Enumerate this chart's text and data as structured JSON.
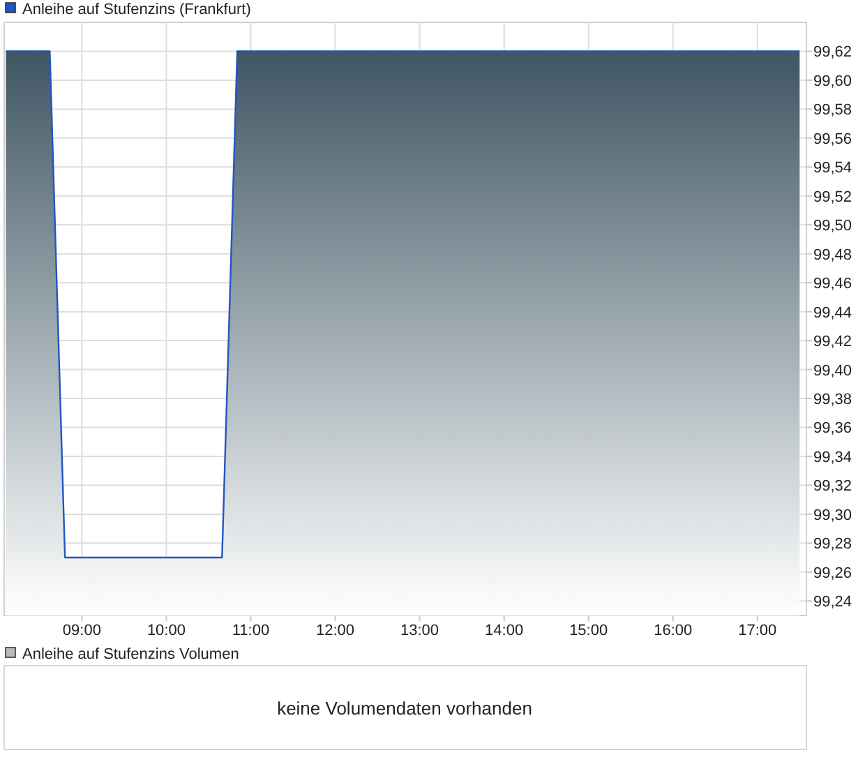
{
  "chart_data": [
    {
      "type": "area",
      "x": [
        8.1,
        8.62,
        8.8,
        10.66,
        10.84,
        17.5
      ],
      "series": [
        {
          "name": "Anleihe auf Stufenzins (Frankfurt)",
          "color": "#2255c4",
          "values": [
            99.62,
            99.62,
            99.27,
            99.27,
            99.62,
            99.62
          ]
        }
      ],
      "xlim": [
        8.08,
        17.58
      ],
      "ylim": [
        99.23,
        99.64
      ],
      "xticks": [
        {
          "value": 9,
          "label": "09:00"
        },
        {
          "value": 10,
          "label": "10:00"
        },
        {
          "value": 11,
          "label": "11:00"
        },
        {
          "value": 12,
          "label": "12:00"
        },
        {
          "value": 13,
          "label": "13:00"
        },
        {
          "value": 14,
          "label": "14:00"
        },
        {
          "value": 15,
          "label": "15:00"
        },
        {
          "value": 16,
          "label": "16:00"
        },
        {
          "value": 17,
          "label": "17:00"
        }
      ],
      "yticks": [
        {
          "value": 99.24,
          "label": "99,24"
        },
        {
          "value": 99.26,
          "label": "99,26"
        },
        {
          "value": 99.28,
          "label": "99,28"
        },
        {
          "value": 99.3,
          "label": "99,30"
        },
        {
          "value": 99.32,
          "label": "99,32"
        },
        {
          "value": 99.34,
          "label": "99,34"
        },
        {
          "value": 99.36,
          "label": "99,36"
        },
        {
          "value": 99.38,
          "label": "99,38"
        },
        {
          "value": 99.4,
          "label": "99,40"
        },
        {
          "value": 99.42,
          "label": "99,42"
        },
        {
          "value": 99.44,
          "label": "99,44"
        },
        {
          "value": 99.46,
          "label": "99,46"
        },
        {
          "value": 99.48,
          "label": "99,48"
        },
        {
          "value": 99.5,
          "label": "99,50"
        },
        {
          "value": 99.52,
          "label": "99,52"
        },
        {
          "value": 99.54,
          "label": "99,54"
        },
        {
          "value": 99.56,
          "label": "99,56"
        },
        {
          "value": 99.58,
          "label": "99,58"
        },
        {
          "value": 99.6,
          "label": "99,60"
        },
        {
          "value": 99.62,
          "label": "99,62"
        }
      ],
      "grid": true,
      "legend": "top left"
    },
    {
      "type": "other",
      "title": "Anleihe auf Stufenzins Volumen",
      "annotations": [
        "keine Volumendaten vorhanden"
      ]
    }
  ]
}
